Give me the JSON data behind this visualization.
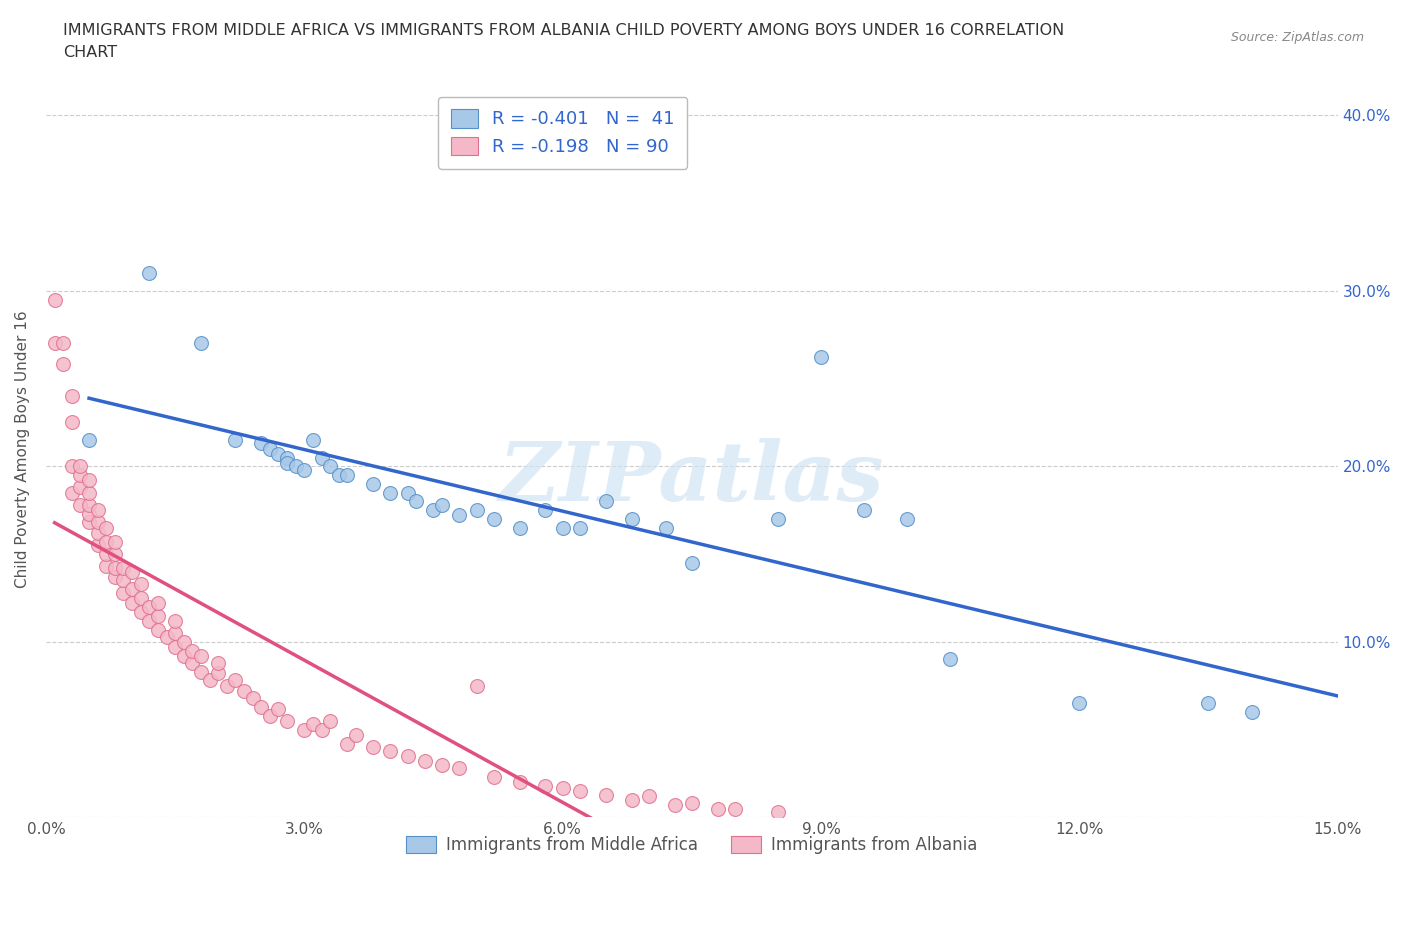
{
  "title_line1": "IMMIGRANTS FROM MIDDLE AFRICA VS IMMIGRANTS FROM ALBANIA CHILD POVERTY AMONG BOYS UNDER 16 CORRELATION",
  "title_line2": "CHART",
  "source": "Source: ZipAtlas.com",
  "ylabel": "Child Poverty Among Boys Under 16",
  "xlim": [
    0.0,
    0.15
  ],
  "ylim": [
    0.0,
    0.42
  ],
  "xticks": [
    0.0,
    0.03,
    0.06,
    0.09,
    0.12,
    0.15
  ],
  "xtick_labels": [
    "0.0%",
    "3.0%",
    "6.0%",
    "9.0%",
    "12.0%",
    "15.0%"
  ],
  "yticks_left": [
    0.0,
    0.1,
    0.2,
    0.3,
    0.4
  ],
  "ytick_labels_left": [
    "0.0%",
    "10.0%",
    "20.0%",
    "30.0%",
    "40.0%"
  ],
  "yticks_right": [
    0.1,
    0.2,
    0.3,
    0.4
  ],
  "ytick_labels_right": [
    "10.0%",
    "20.0%",
    "30.0%",
    "40.0%"
  ],
  "legend_blue_label": "R = -0.401   N =  41",
  "legend_pink_label": "R = -0.198   N = 90",
  "blue_color": "#a8c8e8",
  "pink_color": "#f4b8c8",
  "blue_edge_color": "#5590c8",
  "pink_edge_color": "#e07090",
  "blue_line_color": "#3366cc",
  "pink_solid_color": "#e05080",
  "pink_dash_color": "#f4a0b8",
  "watermark_text": "ZIPatlas",
  "bottom_legend_blue": "Immigrants from Middle Africa",
  "bottom_legend_pink": "Immigrants from Albania",
  "blue_scatter_x": [
    0.005,
    0.012,
    0.018,
    0.022,
    0.025,
    0.026,
    0.027,
    0.028,
    0.028,
    0.029,
    0.03,
    0.031,
    0.032,
    0.033,
    0.034,
    0.035,
    0.038,
    0.04,
    0.042,
    0.043,
    0.045,
    0.046,
    0.048,
    0.05,
    0.052,
    0.055,
    0.058,
    0.06,
    0.062,
    0.065,
    0.068,
    0.072,
    0.075,
    0.085,
    0.09,
    0.095,
    0.1,
    0.105,
    0.12,
    0.135,
    0.14
  ],
  "blue_scatter_y": [
    0.215,
    0.31,
    0.27,
    0.215,
    0.213,
    0.21,
    0.207,
    0.205,
    0.202,
    0.2,
    0.198,
    0.215,
    0.205,
    0.2,
    0.195,
    0.195,
    0.19,
    0.185,
    0.185,
    0.18,
    0.175,
    0.178,
    0.172,
    0.175,
    0.17,
    0.165,
    0.175,
    0.165,
    0.165,
    0.18,
    0.17,
    0.165,
    0.145,
    0.17,
    0.262,
    0.175,
    0.17,
    0.09,
    0.065,
    0.065,
    0.06
  ],
  "pink_scatter_x": [
    0.001,
    0.001,
    0.002,
    0.002,
    0.003,
    0.003,
    0.003,
    0.003,
    0.004,
    0.004,
    0.004,
    0.004,
    0.005,
    0.005,
    0.005,
    0.005,
    0.005,
    0.006,
    0.006,
    0.006,
    0.006,
    0.007,
    0.007,
    0.007,
    0.007,
    0.008,
    0.008,
    0.008,
    0.008,
    0.009,
    0.009,
    0.009,
    0.01,
    0.01,
    0.01,
    0.011,
    0.011,
    0.011,
    0.012,
    0.012,
    0.013,
    0.013,
    0.013,
    0.014,
    0.015,
    0.015,
    0.015,
    0.016,
    0.016,
    0.017,
    0.017,
    0.018,
    0.018,
    0.019,
    0.02,
    0.02,
    0.021,
    0.022,
    0.023,
    0.024,
    0.025,
    0.026,
    0.027,
    0.028,
    0.03,
    0.031,
    0.032,
    0.033,
    0.035,
    0.036,
    0.038,
    0.04,
    0.042,
    0.044,
    0.046,
    0.048,
    0.05,
    0.052,
    0.055,
    0.058,
    0.06,
    0.062,
    0.065,
    0.068,
    0.07,
    0.073,
    0.075,
    0.078,
    0.08,
    0.085
  ],
  "pink_scatter_y": [
    0.27,
    0.295,
    0.258,
    0.27,
    0.185,
    0.2,
    0.225,
    0.24,
    0.178,
    0.188,
    0.195,
    0.2,
    0.168,
    0.173,
    0.178,
    0.185,
    0.192,
    0.155,
    0.162,
    0.168,
    0.175,
    0.143,
    0.15,
    0.157,
    0.165,
    0.137,
    0.142,
    0.15,
    0.157,
    0.128,
    0.135,
    0.142,
    0.122,
    0.13,
    0.14,
    0.117,
    0.125,
    0.133,
    0.112,
    0.12,
    0.107,
    0.115,
    0.122,
    0.103,
    0.097,
    0.105,
    0.112,
    0.092,
    0.1,
    0.088,
    0.095,
    0.083,
    0.092,
    0.078,
    0.082,
    0.088,
    0.075,
    0.078,
    0.072,
    0.068,
    0.063,
    0.058,
    0.062,
    0.055,
    0.05,
    0.053,
    0.05,
    0.055,
    0.042,
    0.047,
    0.04,
    0.038,
    0.035,
    0.032,
    0.03,
    0.028,
    0.075,
    0.023,
    0.02,
    0.018,
    0.017,
    0.015,
    0.013,
    0.01,
    0.012,
    0.007,
    0.008,
    0.005,
    0.005,
    0.003
  ]
}
